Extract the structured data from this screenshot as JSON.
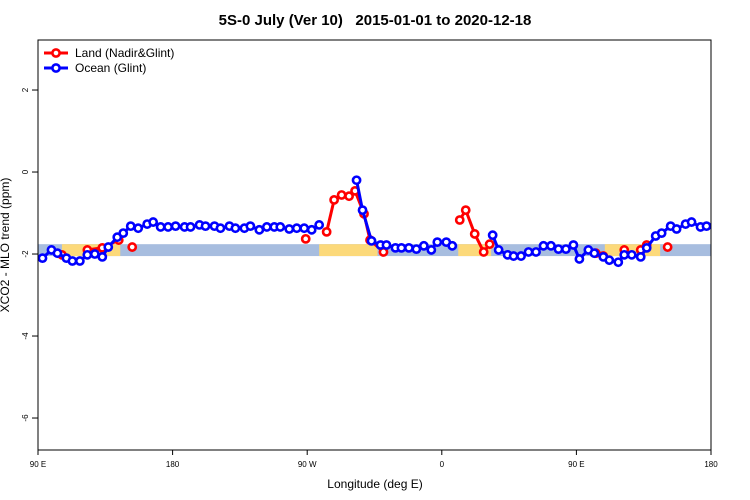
{
  "chart_data": {
    "type": "line",
    "title": "5S-0 July (Ver 10)   2015-01-01 to 2020-12-18",
    "x_label": "Longitude (deg E)",
    "y_label": "XCO2 - MLO trend (ppm)",
    "xlim": [
      90,
      540
    ],
    "xticks": [
      {
        "value": 90,
        "label": "90 E"
      },
      180,
      {
        "value": 270,
        "label": "90 W"
      },
      {
        "value": 360,
        "label": "0"
      },
      {
        "value": 450,
        "label": "90 E"
      },
      {
        "value": 540,
        "label": "180"
      }
    ],
    "ylim": [
      -6.78,
      3.22
    ],
    "yticks": [
      2,
      0,
      -2,
      -4,
      -6
    ],
    "legend": "top-left",
    "band": {
      "ylim": [
        -2.05,
        -1.76
      ],
      "ocean_color": "#a7bddf",
      "land_color": "#fcd97a",
      "land_ranges": [
        [
          106,
          145
        ],
        [
          278,
          317
        ],
        [
          371,
          393
        ],
        [
          469,
          506
        ]
      ]
    },
    "series": [
      {
        "name": "Land (Nadir&Glint)",
        "color": "#ff0000",
        "x": [
          106,
          null,
          123,
          133,
          144,
          null,
          153,
          null,
          269,
          null,
          283,
          288,
          293,
          298,
          302,
          308,
          312,
          321,
          null,
          372,
          376,
          382,
          388,
          392,
          null,
          463,
          468,
          null,
          482,
          null,
          493,
          497,
          null,
          511
        ],
        "values": [
          -2.02,
          null,
          -1.9,
          -1.85,
          -1.66,
          null,
          -1.83,
          null,
          -1.63,
          null,
          -1.46,
          -0.68,
          -0.56,
          -0.59,
          -0.46,
          -1.02,
          -1.66,
          -1.95,
          null,
          -1.17,
          -0.93,
          -1.51,
          -1.95,
          -1.76,
          null,
          -1.98,
          -2.05,
          null,
          -1.9,
          null,
          -1.9,
          -1.78,
          null,
          -1.83
        ]
      },
      {
        "name": "Ocean (Glint)",
        "color": "#0000ff",
        "x": [
          93,
          99,
          103,
          109,
          113,
          118,
          123,
          128,
          133,
          137,
          143,
          147,
          152,
          157,
          163,
          167,
          172,
          177,
          182,
          188,
          192,
          198,
          202,
          208,
          212,
          218,
          222,
          228,
          232,
          238,
          243,
          248,
          252,
          258,
          263,
          268,
          273,
          278,
          null,
          303,
          307,
          313,
          319,
          323,
          329,
          333,
          338,
          343,
          348,
          353,
          357,
          363,
          367,
          null,
          394,
          398,
          404,
          408,
          413,
          418,
          423,
          428,
          433,
          438,
          443,
          448,
          452,
          458,
          462,
          468,
          472,
          478,
          482,
          487,
          493,
          497,
          503,
          507,
          513,
          517,
          523,
          527,
          533,
          537
        ],
        "values": [
          -2.1,
          -1.9,
          -1.98,
          -2.1,
          -2.17,
          -2.17,
          -2.02,
          -2.0,
          -2.07,
          -1.83,
          -1.59,
          -1.49,
          -1.32,
          -1.37,
          -1.27,
          -1.22,
          -1.34,
          -1.34,
          -1.32,
          -1.34,
          -1.34,
          -1.29,
          -1.32,
          -1.32,
          -1.37,
          -1.32,
          -1.37,
          -1.37,
          -1.32,
          -1.41,
          -1.34,
          -1.34,
          -1.34,
          -1.39,
          -1.37,
          -1.37,
          -1.41,
          -1.29,
          null,
          -0.2,
          -0.93,
          -1.68,
          -1.78,
          -1.78,
          -1.85,
          -1.85,
          -1.85,
          -1.88,
          -1.8,
          -1.9,
          -1.71,
          -1.71,
          -1.8,
          null,
          -1.54,
          -1.9,
          -2.02,
          -2.05,
          -2.05,
          -1.95,
          -1.95,
          -1.8,
          -1.8,
          -1.88,
          -1.88,
          -1.78,
          -2.12,
          -1.9,
          -1.98,
          -2.07,
          -2.15,
          -2.2,
          -2.02,
          -2.02,
          -2.07,
          -1.85,
          -1.56,
          -1.49,
          -1.32,
          -1.39,
          -1.27,
          -1.22,
          -1.34,
          -1.32
        ]
      }
    ]
  }
}
